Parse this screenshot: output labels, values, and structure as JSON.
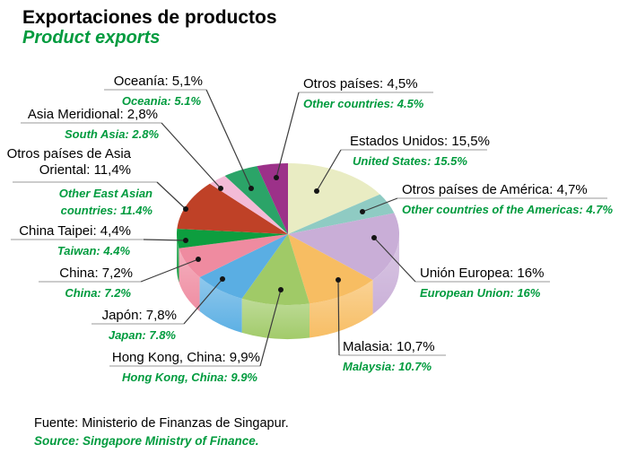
{
  "header": {
    "title_es": "Exportaciones de productos",
    "title_en": "Product exports"
  },
  "source": {
    "es": "Fuente: Ministerio de Finanzas de Singapur.",
    "en": "Source: Singapore Ministry of Finance."
  },
  "colors": {
    "accent_green": "#009B3E",
    "text_black": "#000000",
    "leader_line": "#3c3c3c",
    "underline": "#9a9a9a",
    "dot": "#141414",
    "background": "#ffffff"
  },
  "chart_data": {
    "type": "pie",
    "style": "3d",
    "title": "Exportaciones de productos / Product exports",
    "unit": "%",
    "total": 100,
    "start_angle_deg": -90,
    "direction": "clockwise",
    "slices": [
      {
        "id": "united-states",
        "label_es": "Estados Unidos: 15,5%",
        "label_en": "United States: 15.5%",
        "value": 15.5,
        "color": "#e9ecc3"
      },
      {
        "id": "other-americas",
        "label_es": "Otros países de América: 4,7%",
        "label_en": "Other countries of the Americas: 4.7%",
        "value": 4.7,
        "color": "#8fcbc3"
      },
      {
        "id": "european-union",
        "label_es": "Unión Europea: 16%",
        "label_en": "European Union: 16%",
        "value": 16,
        "color": "#c9aed7"
      },
      {
        "id": "malaysia",
        "label_es": "Malasia: 10,7%",
        "label_en": "Malaysia: 10.7%",
        "value": 10.7,
        "color": "#f7bd62"
      },
      {
        "id": "hong-kong",
        "label_es": "Hong Kong, China: 9,9%",
        "label_en": "Hong Kong, China: 9.9%",
        "value": 9.9,
        "color": "#a0ca67"
      },
      {
        "id": "japan",
        "label_es": "Japón: 7,8%",
        "label_en": "Japan: 7.8%",
        "value": 7.8,
        "color": "#5aaee3"
      },
      {
        "id": "china",
        "label_es": "China: 7,2%",
        "label_en": "China: 7.2%",
        "value": 7.2,
        "color": "#ef8ba0"
      },
      {
        "id": "taiwan",
        "label_es": "China Taipei: 4,4%",
        "label_en": "Taiwan: 4.4%",
        "value": 4.4,
        "color": "#0d9e3f"
      },
      {
        "id": "east-asia",
        "label_es": "Otros países de Asia\nOriental: 11,4%",
        "label_en": "Other East Asian\ncountries: 11.4%",
        "value": 11.4,
        "color": "#bf4127"
      },
      {
        "id": "south-asia",
        "label_es": "Asia Meridional: 2,8%",
        "label_en": "South Asia: 2.8%",
        "value": 2.8,
        "color": "#f3bbd7"
      },
      {
        "id": "oceania",
        "label_es": "Oceanía: 5,1%",
        "label_en": "Oceania: 5.1%",
        "value": 5.1,
        "color": "#2ba468"
      },
      {
        "id": "other-countries",
        "label_es": "Otros países: 4,5%",
        "label_en": "Other countries: 4.5%",
        "value": 4.5,
        "color": "#9c3189"
      }
    ]
  }
}
